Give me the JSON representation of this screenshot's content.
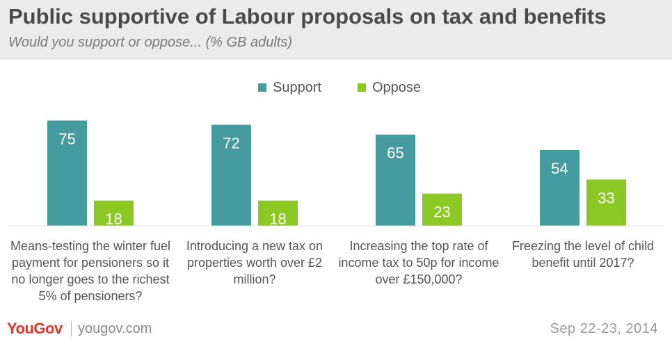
{
  "colors": {
    "support": "#469b9e",
    "oppose": "#8bc824",
    "brand": "#e2362b"
  },
  "chart_data": {
    "type": "bar",
    "title": "Public supportive of Labour proposals on tax and benefits",
    "subtitle": "Would you support or oppose... (% GB adults)",
    "categories": [
      "Means-testing the winter fuel payment for pensioners so it no longer goes to the richest 5% of pensioners?",
      "Introducing a new tax on properties worth over £2 million?",
      "Increasing the top rate of income tax to 50p for income over £150,000?",
      "Freezing the level of child benefit until 2017?"
    ],
    "series": [
      {
        "name": "Support",
        "values": [
          75,
          72,
          65,
          54
        ]
      },
      {
        "name": "Oppose",
        "values": [
          18,
          18,
          23,
          33
        ]
      }
    ],
    "ylim": [
      0,
      100
    ],
    "grid": false,
    "legend": "top-center",
    "data_labels": true
  },
  "footer": {
    "brand": "YouGov",
    "site": "yougov.com",
    "date": "Sep 22-23, 2014"
  }
}
